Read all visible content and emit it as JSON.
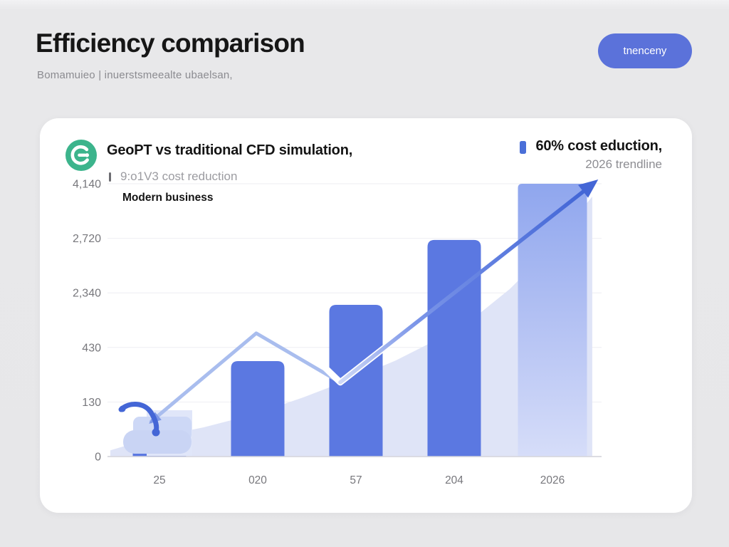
{
  "page": {
    "title": "Efficiency comparison",
    "subtitle": "Bomamuieo | inuerstsmeealte ubaelsan,",
    "cta_button": "tnenceny"
  },
  "card": {
    "title": "GeoPT vs traditional CFD simulation,",
    "subtitle_muted": "9:o1V3 cost reduction",
    "subtitle_strong": "Modern business",
    "legend": {
      "primary": "60% cost eduction,",
      "secondary": "2026 trendline"
    }
  },
  "colors": {
    "accent_blue": "#5b72da",
    "bar_blue": "#5b78e1",
    "trend_dark_blue": "#4466d6",
    "trend_light_blue": "#a9bdee",
    "area_fill": "#dde3f7",
    "legend_marker_blue": "#4a6fd8",
    "logo_green": "#3cb48c",
    "axis_text": "#77777c",
    "gridline": "#eeeef2",
    "baseline": "#d8d8dd"
  },
  "chart_data": {
    "type": "bar",
    "title": "GeoPT vs traditional CFD simulation,",
    "categories": [
      "25",
      "020",
      "57",
      "204",
      "2026"
    ],
    "y_tick_labels_top_to_bottom": [
      "4,140",
      "2,720",
      "2,340",
      "430",
      "130",
      "0"
    ],
    "grid": true,
    "legend_position": "top-right",
    "series": [
      {
        "name": "60% cost eduction,",
        "type": "bar",
        "values_frac_of_plot_height": [
          0.06,
          0.35,
          0.556,
          0.794,
          1.0
        ],
        "variants": [
          "solid",
          "solid",
          "solid",
          "solid",
          "gradient"
        ]
      },
      {
        "name": "2026 trendline",
        "type": "line-with-arrow",
        "points_frac": [
          [
            0.083,
            0.128
          ],
          [
            0.297,
            0.452
          ],
          [
            0.468,
            0.272
          ],
          [
            0.983,
            1.0
          ]
        ]
      }
    ],
    "area_series_frac": [
      [
        0.0,
        0.023
      ],
      [
        0.088,
        0.07
      ],
      [
        0.19,
        0.107
      ],
      [
        0.291,
        0.154
      ],
      [
        0.393,
        0.217
      ],
      [
        0.494,
        0.287
      ],
      [
        0.581,
        0.352
      ],
      [
        0.668,
        0.431
      ],
      [
        0.741,
        0.509
      ],
      [
        0.813,
        0.614
      ],
      [
        0.886,
        0.744
      ],
      [
        0.981,
        0.953
      ]
    ],
    "trend_white_highlight_frac": [
      [
        0.422,
        0.352
      ],
      [
        0.468,
        0.272
      ],
      [
        0.597,
        0.454
      ]
    ]
  }
}
